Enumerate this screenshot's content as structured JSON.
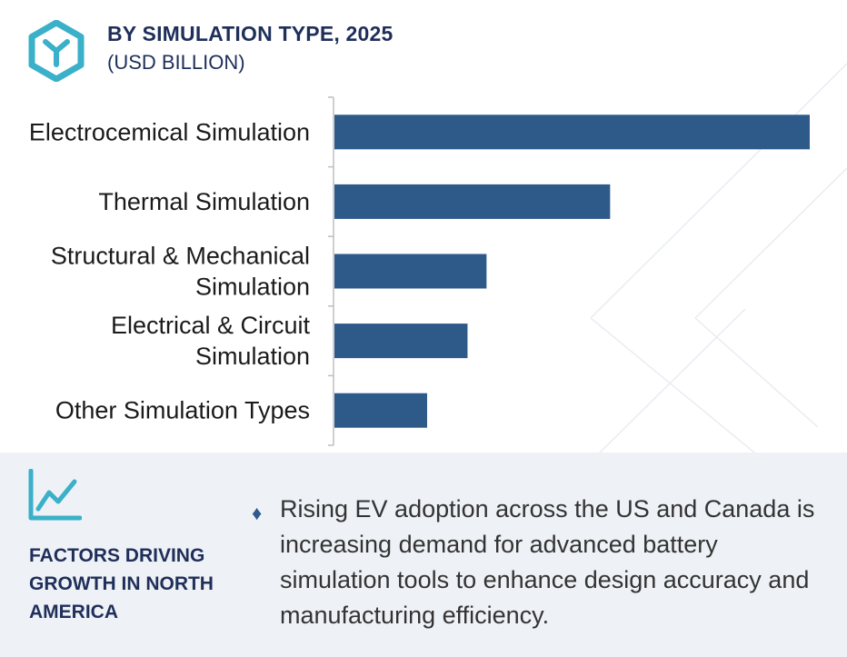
{
  "header": {
    "title": "BY SIMULATION TYPE, 2025",
    "subtitle": "(USD BILLION)"
  },
  "chart_data": {
    "type": "bar",
    "orientation": "horizontal",
    "title": "BY SIMULATION TYPE, 2025",
    "subtitle": "(USD BILLION)",
    "categories": [
      [
        "Electrocemical Simulation"
      ],
      [
        "Thermal Simulation"
      ],
      [
        "Structural & Mechanical",
        "Simulation"
      ],
      [
        "Electrical & Circuit",
        "Simulation"
      ],
      [
        "Other Simulation Types"
      ]
    ],
    "values": [
      100,
      58,
      32,
      28,
      19.5
    ],
    "xlim": [
      0,
      100
    ],
    "grid": false,
    "legend": "none",
    "bar_color": "#2e5a8a"
  },
  "factors": {
    "heading": "FACTORS DRIVING GROWTH IN NORTH AMERICA",
    "bullet": "Rising EV adoption across the US and Canada is increasing demand for advanced battery simulation tools to enhance design accuracy and manufacturing efficiency."
  },
  "icons": {
    "logo": "hexagon-y-logo-icon",
    "growth": "line-chart-icon",
    "bullet": "diamond-bullet-icon"
  },
  "colors": {
    "accent": "#3ab0c9",
    "heading": "#1f2f5a",
    "bar": "#2e5a8a",
    "panel": "#eef1f6"
  }
}
